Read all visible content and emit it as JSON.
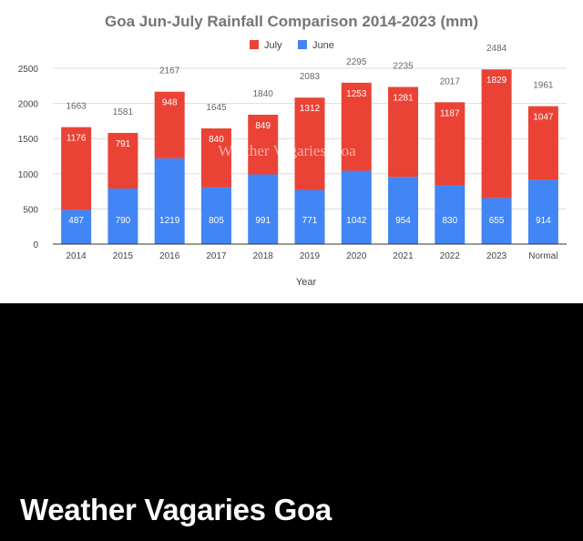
{
  "chart_data": {
    "type": "bar",
    "stacked": true,
    "title": "Goa Jun-July Rainfall Comparison 2014-2023 (mm)",
    "xlabel": "Year",
    "ylabel": "",
    "categories": [
      "2014",
      "2015",
      "2016",
      "2017",
      "2018",
      "2019",
      "2020",
      "2021",
      "2022",
      "2023",
      "Normal"
    ],
    "series": [
      {
        "name": "June",
        "color": "#4285f4",
        "values": [
          487,
          790,
          1219,
          805,
          991,
          771,
          1042,
          954,
          830,
          655,
          914
        ]
      },
      {
        "name": "July",
        "color": "#ea4335",
        "values": [
          1176,
          791,
          948,
          840,
          849,
          1312,
          1253,
          1281,
          1187,
          1829,
          1047
        ]
      }
    ],
    "totals": [
      1663,
      1581,
      2167,
      1645,
      1840,
      2083,
      2295,
      2235,
      2017,
      2484,
      1961
    ],
    "legend_order": [
      "July",
      "June"
    ],
    "legend_position": "top",
    "ylim": [
      0,
      2500
    ],
    "yticks": [
      0,
      500,
      1000,
      1500,
      2000,
      2500
    ],
    "grid": true,
    "watermark": "Weather Vagaries Goa"
  },
  "caption": "Weather Vagaries Goa"
}
